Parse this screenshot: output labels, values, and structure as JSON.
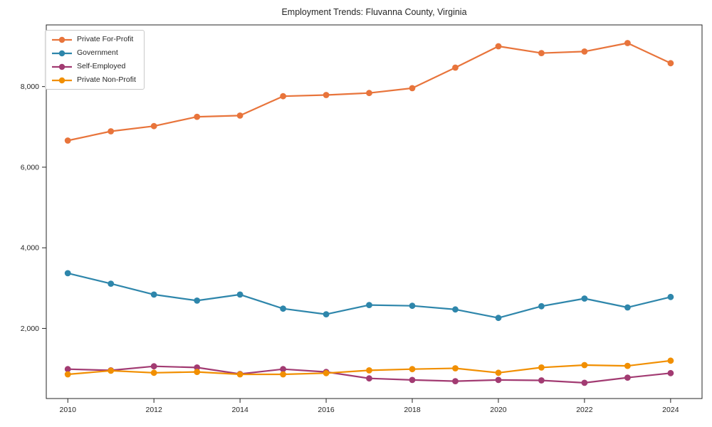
{
  "chart_data": {
    "type": "line",
    "title": "Employment Trends: Fluvanna County, Virginia",
    "xlabel": "",
    "ylabel": "",
    "grid": false,
    "legend_position": "upper-left",
    "xlim": [
      2009.5,
      2024.73
    ],
    "ylim": [
      260,
      9530
    ],
    "x": [
      2010,
      2011,
      2012,
      2013,
      2014,
      2015,
      2016,
      2017,
      2018,
      2019,
      2020,
      2021,
      2022,
      2023,
      2024
    ],
    "x_ticks": [
      2010,
      2012,
      2014,
      2016,
      2018,
      2020,
      2022,
      2024
    ],
    "x_tick_labels": [
      "2010",
      "2012",
      "2014",
      "2016",
      "2018",
      "2020",
      "2022",
      "2024"
    ],
    "y_ticks": [
      2000,
      4000,
      6000,
      8000
    ],
    "y_tick_labels": [
      "2,000",
      "4,000",
      "6,000",
      "8,000"
    ],
    "series": [
      {
        "name": "Private For-Profit",
        "color": "#e8743b",
        "values": [
          6660,
          6890,
          7020,
          7250,
          7280,
          7760,
          7790,
          7840,
          7960,
          8470,
          9000,
          8830,
          8870,
          9080,
          8580
        ]
      },
      {
        "name": "Government",
        "color": "#2e86ab",
        "values": [
          3370,
          3110,
          2840,
          2690,
          2840,
          2490,
          2350,
          2580,
          2560,
          2470,
          2260,
          2550,
          2740,
          2520,
          2780
        ]
      },
      {
        "name": "Self-Employed",
        "color": "#a23b72",
        "values": [
          990,
          960,
          1060,
          1030,
          870,
          990,
          920,
          760,
          720,
          690,
          720,
          710,
          650,
          780,
          890
        ]
      },
      {
        "name": "Private Non-Profit",
        "color": "#f18f01",
        "values": [
          860,
          950,
          900,
          920,
          860,
          860,
          890,
          960,
          990,
          1010,
          900,
          1030,
          1090,
          1070,
          1200
        ]
      }
    ]
  }
}
